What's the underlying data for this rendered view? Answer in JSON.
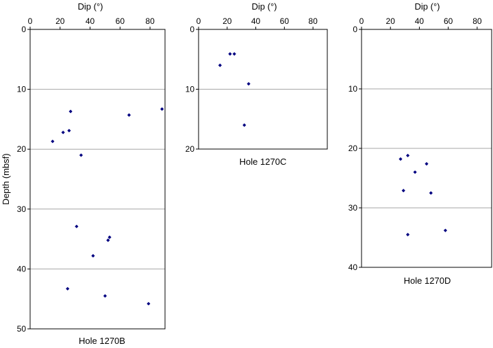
{
  "shared_ylabel": "Depth (mbsf)",
  "chart_data": [
    {
      "type": "scatter",
      "title": "Hole 1270B",
      "xlabel": "Dip (°)",
      "ylabel": "Depth (mbsf)",
      "xlim": [
        0,
        90
      ],
      "ylim": [
        0,
        50
      ],
      "y_inverted": true,
      "x_axis_position": "top",
      "xticks": [
        0,
        20,
        40,
        60,
        80
      ],
      "yticks": [
        0,
        10,
        20,
        30,
        40,
        50
      ],
      "grid": "horizontal",
      "marker_color": "#000080",
      "series": [
        {
          "points": [
            {
              "x": 88,
              "y": 13.3
            },
            {
              "x": 27,
              "y": 13.7
            },
            {
              "x": 66,
              "y": 14.3
            },
            {
              "x": 26,
              "y": 16.9
            },
            {
              "x": 22,
              "y": 17.2
            },
            {
              "x": 15,
              "y": 18.7
            },
            {
              "x": 34,
              "y": 21.0
            },
            {
              "x": 31,
              "y": 32.9
            },
            {
              "x": 53,
              "y": 34.7
            },
            {
              "x": 52,
              "y": 35.2
            },
            {
              "x": 42,
              "y": 37.8
            },
            {
              "x": 25,
              "y": 43.3
            },
            {
              "x": 50,
              "y": 44.5
            },
            {
              "x": 79,
              "y": 45.8
            }
          ]
        }
      ]
    },
    {
      "type": "scatter",
      "title": "Hole 1270C",
      "xlabel": "Dip (°)",
      "ylabel": "",
      "xlim": [
        0,
        90
      ],
      "ylim": [
        0,
        20
      ],
      "y_inverted": true,
      "x_axis_position": "top",
      "xticks": [
        0,
        20,
        40,
        60,
        80
      ],
      "yticks": [
        0,
        10,
        20
      ],
      "grid": "horizontal",
      "marker_color": "#000080",
      "series": [
        {
          "points": [
            {
              "x": 22,
              "y": 4.1
            },
            {
              "x": 25,
              "y": 4.1
            },
            {
              "x": 15,
              "y": 6.0
            },
            {
              "x": 35,
              "y": 9.1
            },
            {
              "x": 32,
              "y": 16.0
            }
          ]
        }
      ]
    },
    {
      "type": "scatter",
      "title": "Hole 1270D",
      "xlabel": "Dip (°)",
      "ylabel": "",
      "xlim": [
        0,
        90
      ],
      "ylim": [
        0,
        40
      ],
      "y_inverted": true,
      "x_axis_position": "top",
      "xticks": [
        0,
        20,
        40,
        60,
        80
      ],
      "yticks": [
        0,
        10,
        20,
        30,
        40
      ],
      "grid": "horizontal",
      "marker_color": "#000080",
      "series": [
        {
          "points": [
            {
              "x": 32,
              "y": 21.2
            },
            {
              "x": 27,
              "y": 21.8
            },
            {
              "x": 45,
              "y": 22.6
            },
            {
              "x": 37,
              "y": 24.0
            },
            {
              "x": 29,
              "y": 27.1
            },
            {
              "x": 48,
              "y": 27.5
            },
            {
              "x": 58,
              "y": 33.8
            },
            {
              "x": 32,
              "y": 34.5
            }
          ]
        }
      ]
    }
  ]
}
